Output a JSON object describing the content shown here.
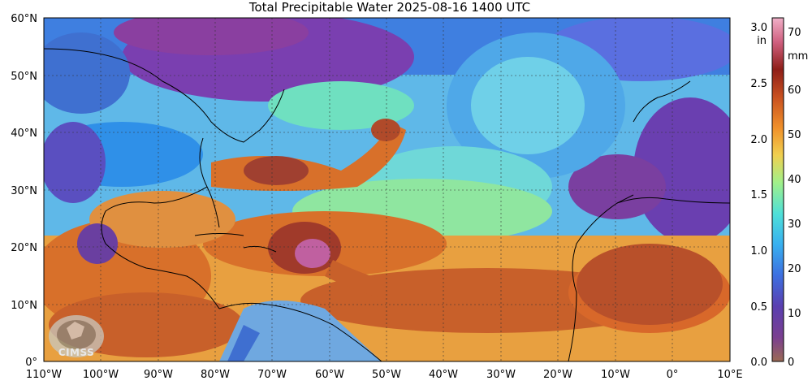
{
  "title": "Total Precipitable Water  2025-08-16 1400 UTC",
  "map": {
    "lat_labels": [
      "60°N",
      "50°N",
      "40°N",
      "30°N",
      "20°N",
      "10°N",
      "0°"
    ],
    "lon_labels": [
      "110°W",
      "100°W",
      "90°W",
      "80°W",
      "70°W",
      "60°W",
      "50°W",
      "40°W",
      "30°W",
      "20°W",
      "10°W",
      "0°",
      "10°E"
    ],
    "colors": {
      "land_dry": "#7a2fa0",
      "ocean_dry": "#2f86e0",
      "moist": "#d4661f",
      "very_moist": "#8e2a1e",
      "mid": "#8fe08a"
    }
  },
  "colorbar": {
    "inch_unit": "in",
    "mm_unit": "mm",
    "inch_ticks": [
      "3.0",
      "2.5",
      "2.0",
      "1.5",
      "1.0",
      "0.5",
      "0.0"
    ],
    "mm_ticks": [
      "70",
      "60",
      "50",
      "40",
      "30",
      "20",
      "10",
      "0"
    ],
    "colors": [
      "#9b6a54",
      "#6b3fa0",
      "#3d6fe0",
      "#38b0f0",
      "#4fe0d8",
      "#a0f08a",
      "#f0d050",
      "#f0902a",
      "#c85020",
      "#8e1e18",
      "#d06080",
      "#f0b0c8"
    ]
  },
  "logo": {
    "text": "CIMSS"
  }
}
